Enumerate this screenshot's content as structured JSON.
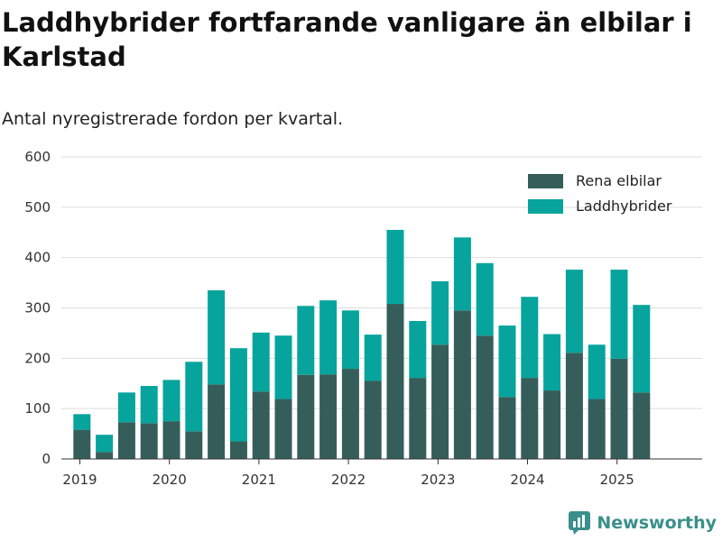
{
  "title": "Laddhybrider fortfarande vanligare än elbilar i Karlstad",
  "subtitle": "Antal nyregistrerade fordon per kvartal.",
  "brand": "Newsworthy",
  "colors": {
    "ev": "#355e5b",
    "phev": "#06a49c",
    "grid": "#dddddd",
    "axis": "#333333"
  },
  "chart_data": {
    "type": "bar",
    "stacked": true,
    "title": "Laddhybrider fortfarande vanligare än elbilar i Karlstad",
    "subtitle": "Antal nyregistrerade fordon per kvartal.",
    "xlabel": "",
    "ylabel": "",
    "ylim": [
      0,
      600
    ],
    "yticks": [
      0,
      100,
      200,
      300,
      400,
      500,
      600
    ],
    "xtick_labels": [
      "2019",
      "2020",
      "2021",
      "2022",
      "2023",
      "2024",
      "2025"
    ],
    "legend_position": "top-right",
    "categories": [
      "2019 Q2",
      "2019 Q3",
      "2019 Q4",
      "2020 Q1",
      "2020 Q2",
      "2020 Q3",
      "2020 Q4",
      "2021 Q1",
      "2021 Q2",
      "2021 Q3",
      "2021 Q4",
      "2022 Q1",
      "2022 Q2",
      "2022 Q3",
      "2022 Q4",
      "2023 Q1",
      "2023 Q2",
      "2023 Q3",
      "2023 Q4",
      "2024 Q1",
      "2024 Q2",
      "2024 Q3",
      "2024 Q4",
      "2025 Q1",
      "2025 Q2",
      "2025 Q3"
    ],
    "series": [
      {
        "name": "Rena elbilar",
        "values": [
          58,
          14,
          73,
          71,
          75,
          55,
          148,
          35,
          134,
          119,
          167,
          168,
          179,
          155,
          308,
          161,
          227,
          295,
          245,
          123,
          161,
          136,
          211,
          119,
          199,
          132
        ]
      },
      {
        "name": "Laddhybrider",
        "values": [
          31,
          34,
          59,
          74,
          82,
          138,
          187,
          185,
          117,
          126,
          137,
          147,
          116,
          92,
          147,
          113,
          126,
          145,
          144,
          142,
          161,
          112,
          165,
          108,
          177,
          174
        ]
      }
    ]
  }
}
